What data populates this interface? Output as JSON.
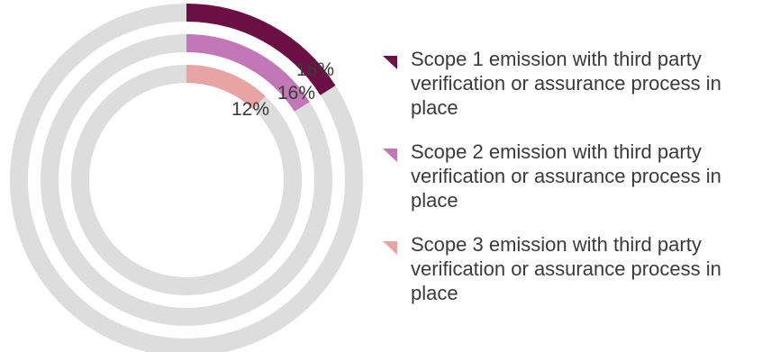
{
  "chart_data": {
    "type": "pie",
    "variant": "concentric-radial-rings",
    "track_color": "#dddddd",
    "series": [
      {
        "name": "Scope 1 emission with third party verification or assurance process in place",
        "value": 16,
        "label": "16%",
        "color": "#6b0f45"
      },
      {
        "name": "Scope 2 emission with third party verification or assurance process in place",
        "value": 16,
        "label": "16%",
        "color": "#c277b6"
      },
      {
        "name": "Scope 3 emission with third party verification or assurance process in place",
        "value": 12,
        "label": "12%",
        "color": "#e7a4a2"
      }
    ],
    "legend_position": "right"
  }
}
